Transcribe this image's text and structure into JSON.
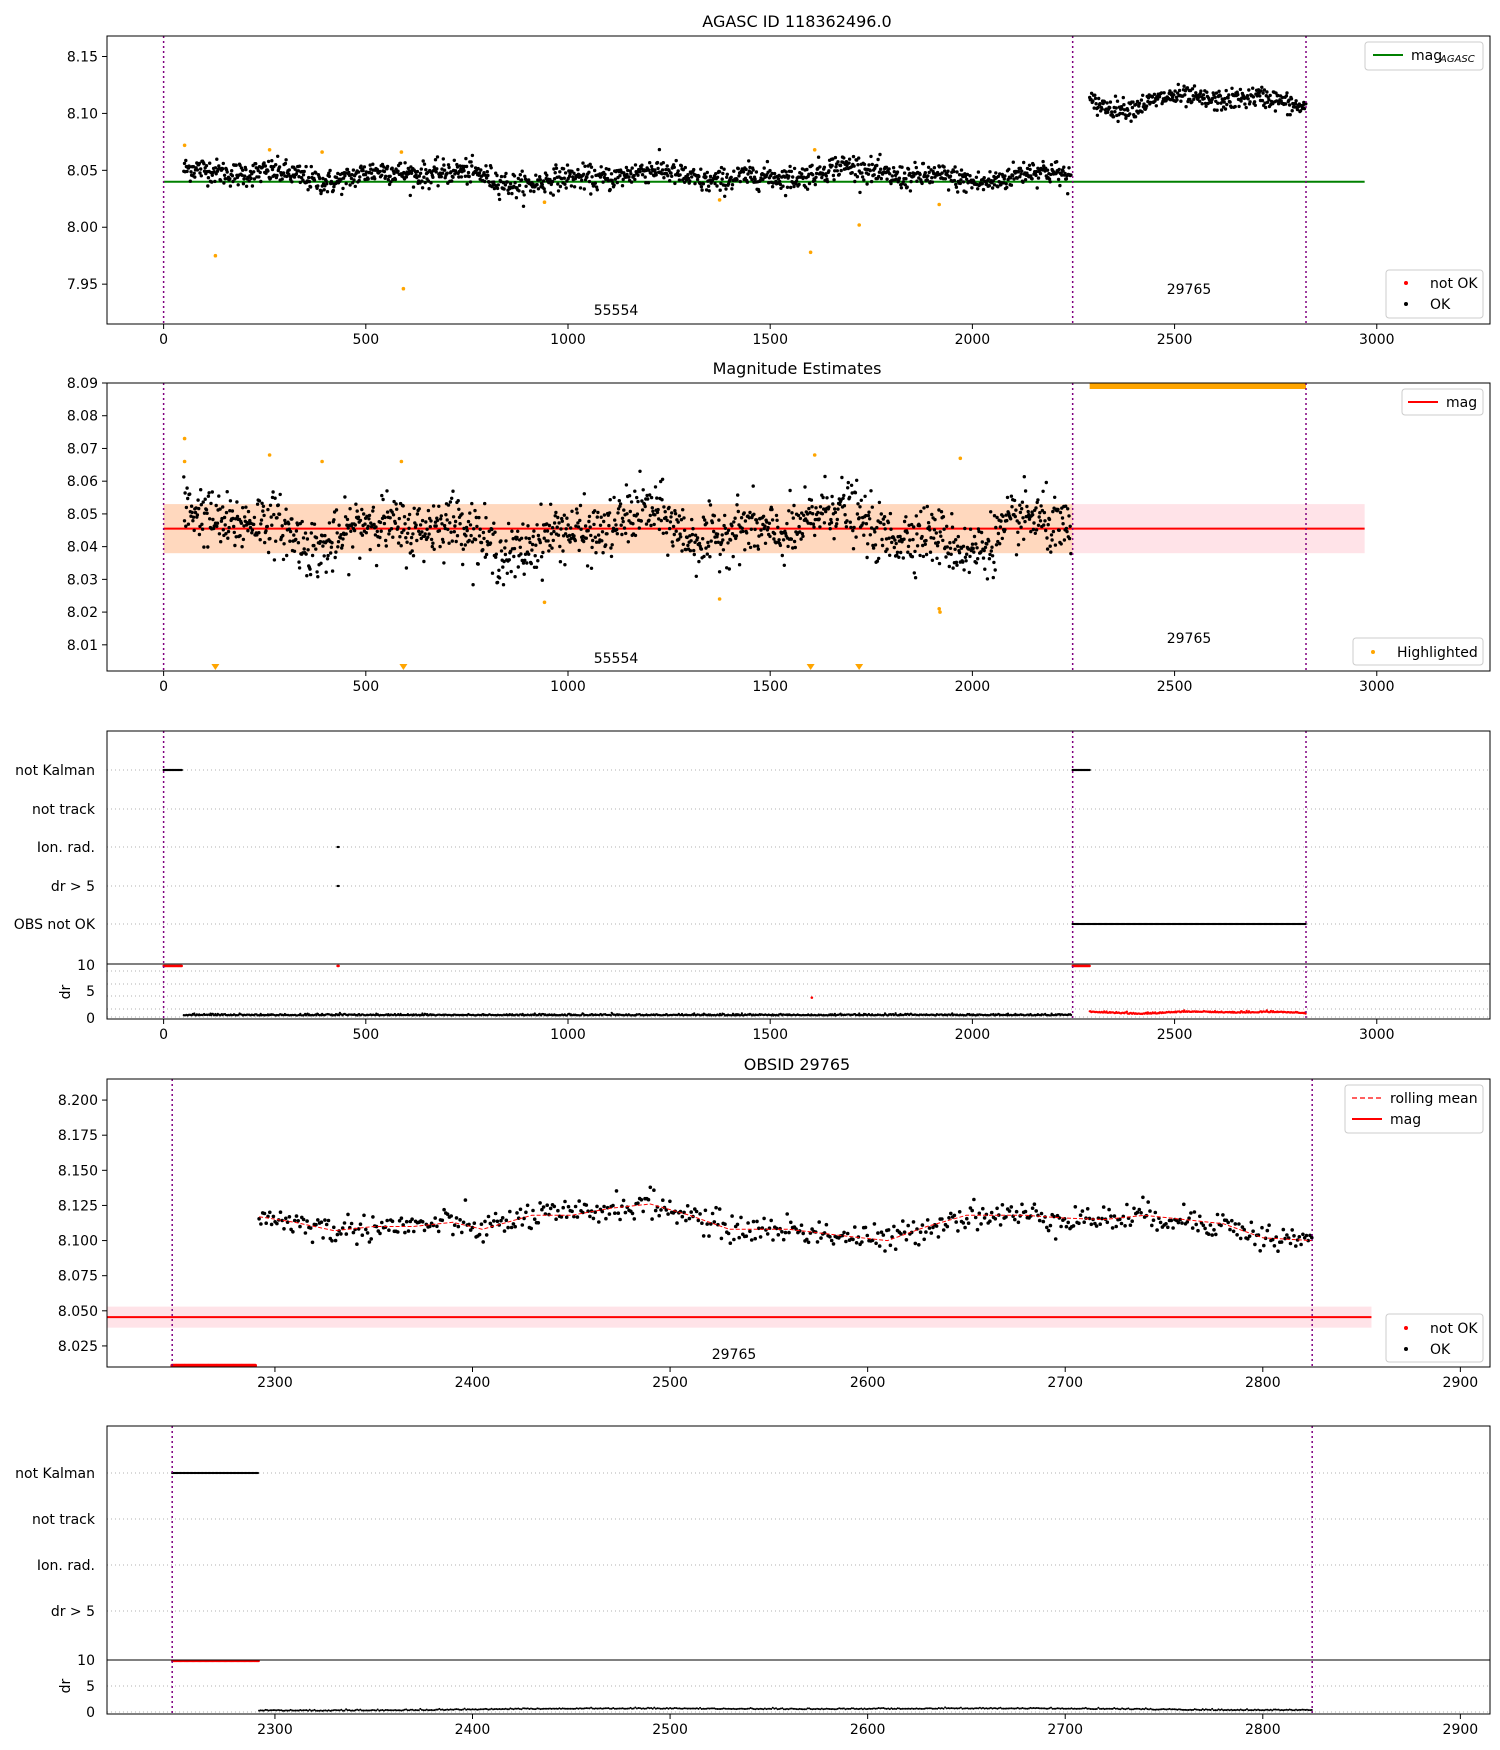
{
  "colors": {
    "ok": "#000000",
    "not_ok": "#ff0000",
    "highlight": "#ffa500",
    "agasc_line": "#008000",
    "mag_line": "#ff0000",
    "obs_boundary": "#800080",
    "band_pink": "#ffc0cb",
    "band_orange": "#ffa500",
    "grid": "#b0b0b0"
  },
  "obs_labels": {
    "obs1": "55554",
    "obs2": "29765"
  },
  "panels": {
    "p1": {
      "title": "AGASC ID 118362496.0",
      "x_ticks": [
        "0",
        "500",
        "1000",
        "1500",
        "2000",
        "2500",
        "3000"
      ],
      "y_ticks": [
        "7.95",
        "8.00",
        "8.05",
        "8.10",
        "8.15"
      ],
      "legend_top": "mag",
      "legend_top_sub": "AGASC",
      "legend_bottom": [
        "not OK",
        "OK"
      ]
    },
    "p2": {
      "title": "Magnitude Estimates",
      "x_ticks": [
        "0",
        "500",
        "1000",
        "1500",
        "2000",
        "2500",
        "3000"
      ],
      "y_ticks": [
        "8.01",
        "8.02",
        "8.03",
        "8.04",
        "8.05",
        "8.06",
        "8.07",
        "8.08",
        "8.09"
      ],
      "legend_top": "mag",
      "legend_bottom": "Highlighted"
    },
    "p3": {
      "flag_labels": [
        "not Kalman",
        "not track",
        "Ion. rad.",
        "dr > 5",
        "OBS not OK"
      ],
      "dr_label": "dr",
      "dr_ticks": [
        "0",
        "5",
        "10"
      ],
      "x_ticks": [
        "0",
        "500",
        "1000",
        "1500",
        "2000",
        "2500",
        "3000"
      ]
    },
    "p4": {
      "title": "OBSID 29765",
      "x_ticks": [
        "2300",
        "2400",
        "2500",
        "2600",
        "2700",
        "2800",
        "2900"
      ],
      "y_ticks": [
        "8.025",
        "8.050",
        "8.075",
        "8.100",
        "8.125",
        "8.150",
        "8.175",
        "8.200"
      ],
      "legend_top": [
        "rolling mean",
        "mag"
      ],
      "legend_bottom": [
        "not OK",
        "OK"
      ]
    },
    "p5": {
      "flag_labels": [
        "not Kalman",
        "not track",
        "Ion. rad.",
        "dr > 5"
      ],
      "dr_label": "dr",
      "dr_ticks": [
        "0",
        "5",
        "10"
      ],
      "x_ticks": [
        "2300",
        "2400",
        "2500",
        "2600",
        "2700",
        "2800",
        "2900"
      ]
    }
  },
  "chart_data": [
    {
      "type": "scatter",
      "title": "AGASC ID 118362496.0",
      "xlim": [
        -140,
        3280
      ],
      "ylim": [
        7.915,
        8.168
      ],
      "obs_boundaries": [
        0,
        2248,
        2825
      ],
      "agasc_mag": 8.04,
      "series": [
        {
          "name": "OK",
          "segments": [
            {
              "x0": 50,
              "x1": 2245,
              "mean": 8.045,
              "noise": 0.012
            },
            {
              "x0": 2290,
              "x1": 2825,
              "mean": 8.112,
              "noise": 0.01
            }
          ]
        },
        {
          "name": "not OK",
          "points": []
        }
      ],
      "highlighted": [
        [
          52,
          8.072
        ],
        [
          128,
          7.975
        ],
        [
          262,
          8.068
        ],
        [
          392,
          8.066
        ],
        [
          588,
          8.066
        ],
        [
          593,
          7.946
        ],
        [
          942,
          8.022
        ],
        [
          1375,
          8.024
        ],
        [
          1600,
          7.978
        ],
        [
          1610,
          8.068
        ],
        [
          1720,
          8.002
        ],
        [
          1918,
          8.02
        ]
      ],
      "legend": [
        "mag_AGASC",
        "not OK",
        "OK"
      ]
    },
    {
      "type": "scatter",
      "title": "Magnitude Estimates",
      "xlim": [
        -140,
        3280
      ],
      "ylim": [
        8.002,
        8.09
      ],
      "mag": 8.0455,
      "band": [
        8.038,
        8.053
      ],
      "series": [
        {
          "name": "OK",
          "x0": 50,
          "x1": 2245,
          "mean": 8.045,
          "noise": 0.008
        }
      ],
      "highlighted": [
        [
          52,
          8.073
        ],
        [
          52,
          8.066
        ],
        [
          262,
          8.068
        ],
        [
          392,
          8.066
        ],
        [
          588,
          8.066
        ],
        [
          942,
          8.023
        ],
        [
          1375,
          8.024
        ],
        [
          1610,
          8.068
        ],
        [
          1918,
          8.021
        ],
        [
          1920,
          8.02
        ],
        [
          1970,
          8.067
        ]
      ],
      "highlighted_below_axis": [
        128,
        593,
        1600,
        1720
      ],
      "highlighted_above_axis": [
        2290,
        2825
      ],
      "legend": [
        "mag",
        "Highlighted"
      ]
    },
    {
      "type": "scatter",
      "xlim": [
        -140,
        3280
      ],
      "flags": {
        "not Kalman": [
          [
            0,
            45
          ],
          [
            2248,
            2290
          ]
        ],
        "not track": [],
        "Ion. rad.": [
          [
            430,
            434
          ]
        ],
        "dr > 5": [
          [
            430,
            434
          ]
        ],
        "OBS not OK": [
          [
            2248,
            2825
          ]
        ]
      },
      "dr_ylim": [
        0,
        10
      ],
      "dr_ok": {
        "x0": 50,
        "x1": 2245,
        "level": 0.3
      },
      "dr_not_ok": {
        "x0": 2290,
        "x1": 2825,
        "level": 0.8
      },
      "dr_capped": [
        [
          0,
          45
        ],
        [
          430,
          434
        ],
        [
          2248,
          2290
        ]
      ],
      "dr_extra": [
        [
          1603,
          3.8
        ]
      ]
    },
    {
      "type": "scatter",
      "title": "OBSID 29765",
      "xlim": [
        2215,
        2915
      ],
      "ylim": [
        8.01,
        8.215
      ],
      "obs_boundaries": [
        2248,
        2825
      ],
      "mag": 8.0455,
      "band": [
        8.038,
        8.053
      ],
      "series": [
        {
          "name": "OK",
          "x0": 2292,
          "x1": 2825,
          "noise": 0.005
        },
        {
          "name": "not OK",
          "x0": 2248,
          "x1": 2290,
          "level": 8.011
        }
      ],
      "rolling_mean": [
        [
          2292,
          8.117
        ],
        [
          2310,
          8.113
        ],
        [
          2330,
          8.107
        ],
        [
          2350,
          8.11
        ],
        [
          2370,
          8.11
        ],
        [
          2390,
          8.113
        ],
        [
          2405,
          8.108
        ],
        [
          2430,
          8.118
        ],
        [
          2450,
          8.118
        ],
        [
          2470,
          8.123
        ],
        [
          2490,
          8.126
        ],
        [
          2510,
          8.118
        ],
        [
          2530,
          8.108
        ],
        [
          2560,
          8.108
        ],
        [
          2590,
          8.103
        ],
        [
          2610,
          8.1
        ],
        [
          2630,
          8.11
        ],
        [
          2650,
          8.118
        ],
        [
          2680,
          8.118
        ],
        [
          2700,
          8.116
        ],
        [
          2720,
          8.115
        ],
        [
          2740,
          8.118
        ],
        [
          2760,
          8.115
        ],
        [
          2780,
          8.112
        ],
        [
          2800,
          8.102
        ],
        [
          2825,
          8.1
        ]
      ],
      "legend": [
        "rolling mean",
        "mag",
        "not OK",
        "OK"
      ]
    },
    {
      "type": "scatter",
      "xlim": [
        2215,
        2915
      ],
      "flags": {
        "not Kalman": [
          [
            2248,
            2292
          ]
        ],
        "not track": [],
        "Ion. rad.": [],
        "dr > 5": []
      },
      "dr_ylim": [
        0,
        10
      ],
      "dr_ok": {
        "x0": 2292,
        "x1": 2825,
        "level": 0.5
      },
      "dr_capped": [
        [
          2248,
          2292
        ]
      ]
    }
  ]
}
